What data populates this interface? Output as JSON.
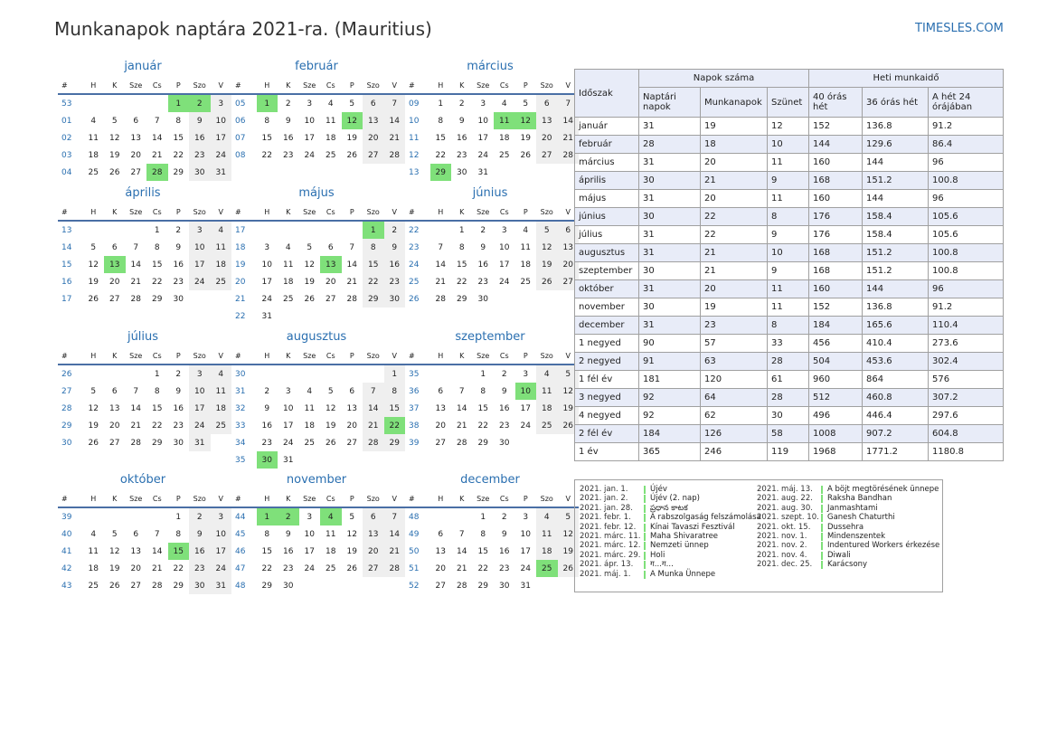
{
  "header": {
    "title": "Munkanapok naptára 2021-ra. (Mauritius)",
    "site": "TIMESLES.COM"
  },
  "weekday_headers": [
    "#",
    "H",
    "K",
    "Sze",
    "Cs",
    "P",
    "Szo",
    "V"
  ],
  "months": [
    {
      "name": "január",
      "weeks": [
        [
          "53",
          "",
          "",
          "",
          "",
          "1",
          "2",
          "3"
        ],
        [
          "01",
          "4",
          "5",
          "6",
          "7",
          "8",
          "9",
          "10"
        ],
        [
          "02",
          "11",
          "12",
          "13",
          "14",
          "15",
          "16",
          "17"
        ],
        [
          "03",
          "18",
          "19",
          "20",
          "21",
          "22",
          "23",
          "24"
        ],
        [
          "04",
          "25",
          "26",
          "27",
          "28",
          "29",
          "30",
          "31"
        ]
      ],
      "holidays": [
        "1",
        "2",
        "28"
      ]
    },
    {
      "name": "február",
      "weeks": [
        [
          "05",
          "1",
          "2",
          "3",
          "4",
          "5",
          "6",
          "7"
        ],
        [
          "06",
          "8",
          "9",
          "10",
          "11",
          "12",
          "13",
          "14"
        ],
        [
          "07",
          "15",
          "16",
          "17",
          "18",
          "19",
          "20",
          "21"
        ],
        [
          "08",
          "22",
          "23",
          "24",
          "25",
          "26",
          "27",
          "28"
        ]
      ],
      "holidays": [
        "1",
        "12"
      ]
    },
    {
      "name": "március",
      "weeks": [
        [
          "09",
          "1",
          "2",
          "3",
          "4",
          "5",
          "6",
          "7"
        ],
        [
          "10",
          "8",
          "9",
          "10",
          "11",
          "12",
          "13",
          "14"
        ],
        [
          "11",
          "15",
          "16",
          "17",
          "18",
          "19",
          "20",
          "21"
        ],
        [
          "12",
          "22",
          "23",
          "24",
          "25",
          "26",
          "27",
          "28"
        ],
        [
          "13",
          "29",
          "30",
          "31",
          "",
          "",
          "",
          ""
        ]
      ],
      "holidays": [
        "11",
        "12",
        "29"
      ]
    },
    {
      "name": "április",
      "weeks": [
        [
          "13",
          "",
          "",
          "",
          "1",
          "2",
          "3",
          "4"
        ],
        [
          "14",
          "5",
          "6",
          "7",
          "8",
          "9",
          "10",
          "11"
        ],
        [
          "15",
          "12",
          "13",
          "14",
          "15",
          "16",
          "17",
          "18"
        ],
        [
          "16",
          "19",
          "20",
          "21",
          "22",
          "23",
          "24",
          "25"
        ],
        [
          "17",
          "26",
          "27",
          "28",
          "29",
          "30",
          "",
          ""
        ]
      ],
      "holidays": [
        "13"
      ]
    },
    {
      "name": "május",
      "weeks": [
        [
          "17",
          "",
          "",
          "",
          "",
          "",
          "1",
          "2"
        ],
        [
          "18",
          "3",
          "4",
          "5",
          "6",
          "7",
          "8",
          "9"
        ],
        [
          "19",
          "10",
          "11",
          "12",
          "13",
          "14",
          "15",
          "16"
        ],
        [
          "20",
          "17",
          "18",
          "19",
          "20",
          "21",
          "22",
          "23"
        ],
        [
          "21",
          "24",
          "25",
          "26",
          "27",
          "28",
          "29",
          "30"
        ],
        [
          "22",
          "31",
          "",
          "",
          "",
          "",
          "",
          ""
        ]
      ],
      "holidays": [
        "1",
        "13"
      ]
    },
    {
      "name": "június",
      "weeks": [
        [
          "22",
          "",
          "1",
          "2",
          "3",
          "4",
          "5",
          "6"
        ],
        [
          "23",
          "7",
          "8",
          "9",
          "10",
          "11",
          "12",
          "13"
        ],
        [
          "24",
          "14",
          "15",
          "16",
          "17",
          "18",
          "19",
          "20"
        ],
        [
          "25",
          "21",
          "22",
          "23",
          "24",
          "25",
          "26",
          "27"
        ],
        [
          "26",
          "28",
          "29",
          "30",
          "",
          "",
          "",
          ""
        ]
      ],
      "holidays": []
    },
    {
      "name": "július",
      "weeks": [
        [
          "26",
          "",
          "",
          "",
          "1",
          "2",
          "3",
          "4"
        ],
        [
          "27",
          "5",
          "6",
          "7",
          "8",
          "9",
          "10",
          "11"
        ],
        [
          "28",
          "12",
          "13",
          "14",
          "15",
          "16",
          "17",
          "18"
        ],
        [
          "29",
          "19",
          "20",
          "21",
          "22",
          "23",
          "24",
          "25"
        ],
        [
          "30",
          "26",
          "27",
          "28",
          "29",
          "30",
          "31",
          ""
        ]
      ],
      "holidays": []
    },
    {
      "name": "augusztus",
      "weeks": [
        [
          "30",
          "",
          "",
          "",
          "",
          "",
          "",
          "1"
        ],
        [
          "31",
          "2",
          "3",
          "4",
          "5",
          "6",
          "7",
          "8"
        ],
        [
          "32",
          "9",
          "10",
          "11",
          "12",
          "13",
          "14",
          "15"
        ],
        [
          "33",
          "16",
          "17",
          "18",
          "19",
          "20",
          "21",
          "22"
        ],
        [
          "34",
          "23",
          "24",
          "25",
          "26",
          "27",
          "28",
          "29"
        ],
        [
          "35",
          "30",
          "31",
          "",
          "",
          "",
          "",
          ""
        ]
      ],
      "holidays": [
        "22",
        "30"
      ]
    },
    {
      "name": "szeptember",
      "weeks": [
        [
          "35",
          "",
          "",
          "1",
          "2",
          "3",
          "4",
          "5"
        ],
        [
          "36",
          "6",
          "7",
          "8",
          "9",
          "10",
          "11",
          "12"
        ],
        [
          "37",
          "13",
          "14",
          "15",
          "16",
          "17",
          "18",
          "19"
        ],
        [
          "38",
          "20",
          "21",
          "22",
          "23",
          "24",
          "25",
          "26"
        ],
        [
          "39",
          "27",
          "28",
          "29",
          "30",
          "",
          "",
          ""
        ]
      ],
      "holidays": [
        "10"
      ]
    },
    {
      "name": "október",
      "weeks": [
        [
          "39",
          "",
          "",
          "",
          "",
          "1",
          "2",
          "3"
        ],
        [
          "40",
          "4",
          "5",
          "6",
          "7",
          "8",
          "9",
          "10"
        ],
        [
          "41",
          "11",
          "12",
          "13",
          "14",
          "15",
          "16",
          "17"
        ],
        [
          "42",
          "18",
          "19",
          "20",
          "21",
          "22",
          "23",
          "24"
        ],
        [
          "43",
          "25",
          "26",
          "27",
          "28",
          "29",
          "30",
          "31"
        ]
      ],
      "holidays": [
        "15"
      ]
    },
    {
      "name": "november",
      "weeks": [
        [
          "44",
          "1",
          "2",
          "3",
          "4",
          "5",
          "6",
          "7"
        ],
        [
          "45",
          "8",
          "9",
          "10",
          "11",
          "12",
          "13",
          "14"
        ],
        [
          "46",
          "15",
          "16",
          "17",
          "18",
          "19",
          "20",
          "21"
        ],
        [
          "47",
          "22",
          "23",
          "24",
          "25",
          "26",
          "27",
          "28"
        ],
        [
          "48",
          "29",
          "30",
          "",
          "",
          "",
          "",
          ""
        ]
      ],
      "holidays": [
        "1",
        "2",
        "4"
      ]
    },
    {
      "name": "december",
      "weeks": [
        [
          "48",
          "",
          "",
          "1",
          "2",
          "3",
          "4",
          "5"
        ],
        [
          "49",
          "6",
          "7",
          "8",
          "9",
          "10",
          "11",
          "12"
        ],
        [
          "50",
          "13",
          "14",
          "15",
          "16",
          "17",
          "18",
          "19"
        ],
        [
          "51",
          "20",
          "21",
          "22",
          "23",
          "24",
          "25",
          "26"
        ],
        [
          "52",
          "27",
          "28",
          "29",
          "30",
          "31",
          "",
          ""
        ]
      ],
      "holidays": [
        "25"
      ]
    }
  ],
  "summary": {
    "col_period": "Időszak",
    "group_days": "Napok száma",
    "group_hours": "Heti munkaidő",
    "columns": [
      "Naptári napok",
      "Munkanapok",
      "Szünet",
      "40 órás hét",
      "36 órás hét",
      "A hét 24 órájában"
    ],
    "rows": [
      [
        "január",
        "31",
        "19",
        "12",
        "152",
        "136.8",
        "91.2"
      ],
      [
        "február",
        "28",
        "18",
        "10",
        "144",
        "129.6",
        "86.4"
      ],
      [
        "március",
        "31",
        "20",
        "11",
        "160",
        "144",
        "96"
      ],
      [
        "április",
        "30",
        "21",
        "9",
        "168",
        "151.2",
        "100.8"
      ],
      [
        "május",
        "31",
        "20",
        "11",
        "160",
        "144",
        "96"
      ],
      [
        "június",
        "30",
        "22",
        "8",
        "176",
        "158.4",
        "105.6"
      ],
      [
        "július",
        "31",
        "22",
        "9",
        "176",
        "158.4",
        "105.6"
      ],
      [
        "augusztus",
        "31",
        "21",
        "10",
        "168",
        "151.2",
        "100.8"
      ],
      [
        "szeptember",
        "30",
        "21",
        "9",
        "168",
        "151.2",
        "100.8"
      ],
      [
        "október",
        "31",
        "20",
        "11",
        "160",
        "144",
        "96"
      ],
      [
        "november",
        "30",
        "19",
        "11",
        "152",
        "136.8",
        "91.2"
      ],
      [
        "december",
        "31",
        "23",
        "8",
        "184",
        "165.6",
        "110.4"
      ],
      [
        "1 negyed",
        "90",
        "57",
        "33",
        "456",
        "410.4",
        "273.6"
      ],
      [
        "2 negyed",
        "91",
        "63",
        "28",
        "504",
        "453.6",
        "302.4"
      ],
      [
        "1 fél év",
        "181",
        "120",
        "61",
        "960",
        "864",
        "576"
      ],
      [
        "3 negyed",
        "92",
        "64",
        "28",
        "512",
        "460.8",
        "307.2"
      ],
      [
        "4 negyed",
        "92",
        "62",
        "30",
        "496",
        "446.4",
        "297.6"
      ],
      [
        "2 fél év",
        "184",
        "126",
        "58",
        "1008",
        "907.2",
        "604.8"
      ],
      [
        "1 év",
        "365",
        "246",
        "119",
        "1968",
        "1771.2",
        "1180.8"
      ]
    ]
  },
  "holidays_left": [
    {
      "date": "2021. jan. 1.",
      "name": "Újév"
    },
    {
      "date": "2021. jan. 2.",
      "name": "Újév (2. nap)"
    },
    {
      "date": "2021. jan. 28.",
      "name": "ప్రధాన కాటక"
    },
    {
      "date": "2021. febr. 1.",
      "name": "A rabszolgaság felszámolása"
    },
    {
      "date": "2021. febr. 12.",
      "name": "Kínai Tavaszi Fesztivál"
    },
    {
      "date": "2021. márc. 11.",
      "name": "Maha Shivaratree"
    },
    {
      "date": "2021. márc. 12.",
      "name": "Nemzeti ünnep"
    },
    {
      "date": "2021. márc. 29.",
      "name": "Holi"
    },
    {
      "date": "2021. ápr. 13.",
      "name": "ग...ग..."
    },
    {
      "date": "2021. máj. 1.",
      "name": "A Munka Ünnepe"
    }
  ],
  "holidays_right": [
    {
      "date": "2021. máj. 13.",
      "name": "A böjt megtörésének ünnepe"
    },
    {
      "date": "2021. aug. 22.",
      "name": "Raksha Bandhan"
    },
    {
      "date": "2021. aug. 30.",
      "name": "Janmashtami"
    },
    {
      "date": "2021. szept. 10.",
      "name": "Ganesh Chaturthi"
    },
    {
      "date": "2021. okt. 15.",
      "name": "Dussehra"
    },
    {
      "date": "2021. nov. 1.",
      "name": "Mindenszentek"
    },
    {
      "date": "2021. nov. 2.",
      "name": "Indentured Workers érkezése"
    },
    {
      "date": "2021. nov. 4.",
      "name": "Diwali"
    },
    {
      "date": "2021. dec. 25.",
      "name": "Karácsony"
    }
  ],
  "colors": {
    "accent": "#2a6fb0",
    "holiday": "#7fe07a",
    "weekend": "#efefef",
    "table_header": "#e8ecf8"
  }
}
